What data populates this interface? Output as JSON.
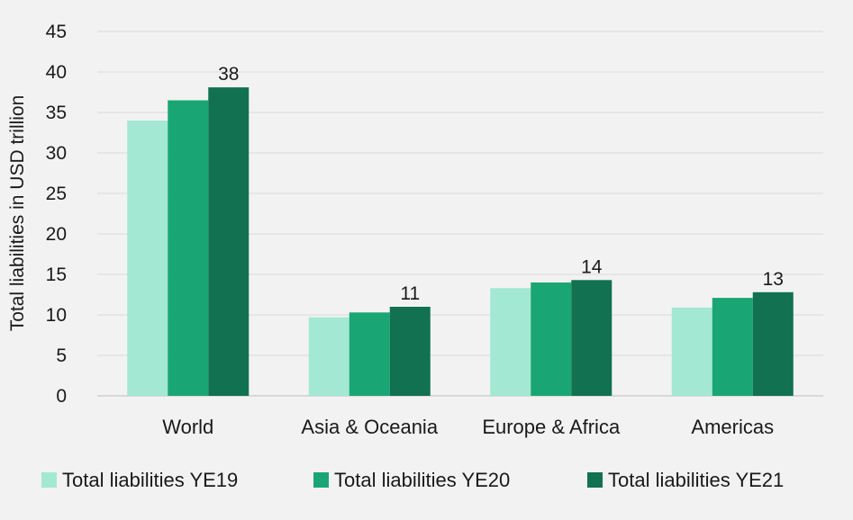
{
  "chart_data": {
    "type": "bar",
    "ylabel": "Total liabilities in USD trillion",
    "xlabel": "",
    "ylim": [
      0,
      45
    ],
    "yticks": [
      0,
      5,
      10,
      15,
      20,
      25,
      30,
      35,
      40,
      45
    ],
    "grid": true,
    "legend_position": "bottom",
    "categories": [
      "World",
      "Asia & Oceania",
      "Europe & Africa",
      "Americas"
    ],
    "series": [
      {
        "name": "Total liabilities YE19",
        "color": "#a3e8d2",
        "values": [
          34,
          9.7,
          13.3,
          10.9
        ]
      },
      {
        "name": "Total liabilities YE20",
        "color": "#1aa674",
        "values": [
          36.5,
          10.3,
          14,
          12.1
        ]
      },
      {
        "name": "Total liabilities YE21",
        "color": "#117150",
        "values": [
          38.1,
          11,
          14.3,
          12.8
        ]
      }
    ],
    "data_labels": [
      {
        "category_index": 0,
        "series_index": 2,
        "text": "38"
      },
      {
        "category_index": 1,
        "series_index": 2,
        "text": "11"
      },
      {
        "category_index": 2,
        "series_index": 2,
        "text": "14"
      },
      {
        "category_index": 3,
        "series_index": 2,
        "text": "13"
      }
    ]
  }
}
